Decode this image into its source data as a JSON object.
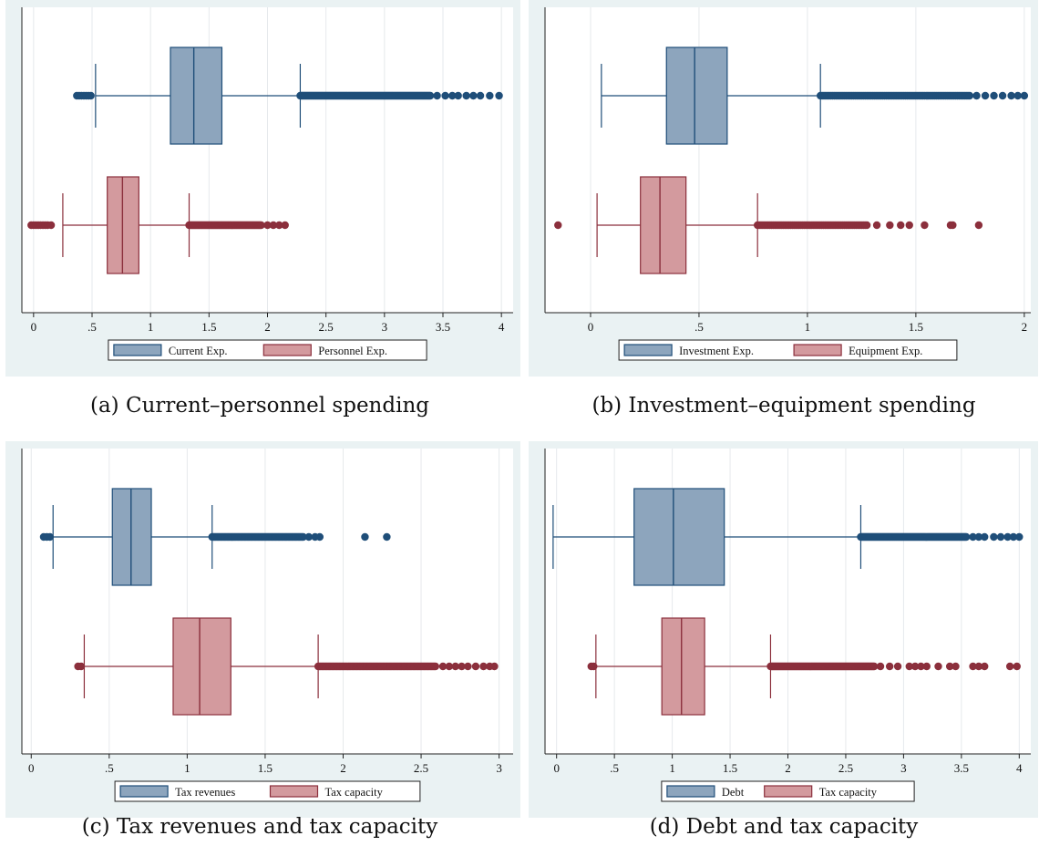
{
  "chart_data": [
    {
      "type": "boxplot",
      "caption": "(a) Current–personnel spending",
      "xticks": [
        0,
        0.5,
        1,
        1.5,
        2,
        2.5,
        3,
        3.5,
        4
      ],
      "xtick_labels": [
        "0",
        ".5",
        "1",
        "1.5",
        "2",
        "2.5",
        "3",
        "3.5",
        "4"
      ],
      "xlim": [
        -0.1,
        4.1
      ],
      "grid": true,
      "legend_position": "bottom",
      "series": [
        {
          "name": "Current Exp.",
          "fill": "#8da5bd",
          "stroke": "#1f4e79",
          "dot": "#1f4e79",
          "whisker_low": 0.53,
          "q1": 1.17,
          "median": 1.37,
          "q3": 1.61,
          "whisker_high": 2.28,
          "outliers_low": [
            0.37,
            0.39,
            0.41,
            0.43,
            0.45,
            0.47,
            0.49
          ],
          "outliers_high_range": [
            2.28,
            3.4
          ],
          "outliers_high_sparse": [
            3.45,
            3.52,
            3.58,
            3.63,
            3.7,
            3.76,
            3.82,
            3.9,
            3.98
          ]
        },
        {
          "name": "Personnel Exp.",
          "fill": "#d39a9e",
          "stroke": "#8b2f3c",
          "dot": "#8b2f3c",
          "whisker_low": 0.25,
          "q1": 0.63,
          "median": 0.76,
          "q3": 0.9,
          "whisker_high": 1.33,
          "outliers_low": [
            -0.02,
            0.0,
            0.02,
            0.04,
            0.06,
            0.08,
            0.1,
            0.12,
            0.15
          ],
          "outliers_high_range": [
            1.33,
            1.95
          ],
          "outliers_high_sparse": [
            2.0,
            2.05,
            2.1,
            2.15
          ]
        }
      ]
    },
    {
      "type": "boxplot",
      "caption": "(b) Investment–equipment spending",
      "xticks": [
        0,
        0.5,
        1,
        1.5,
        2
      ],
      "xtick_labels": [
        "0",
        ".5",
        "1",
        "1.5",
        "2"
      ],
      "xlim": [
        -0.21,
        2.03
      ],
      "grid": true,
      "legend_position": "bottom",
      "series": [
        {
          "name": "Investment Exp.",
          "fill": "#8da5bd",
          "stroke": "#1f4e79",
          "dot": "#1f4e79",
          "whisker_low": 0.05,
          "q1": 0.35,
          "median": 0.48,
          "q3": 0.63,
          "whisker_high": 1.06,
          "outliers_low": [],
          "outliers_high_range": [
            1.06,
            1.75
          ],
          "outliers_high_sparse": [
            1.78,
            1.82,
            1.86,
            1.9,
            1.94,
            1.97,
            2.0
          ]
        },
        {
          "name": "Equipment Exp.",
          "fill": "#d39a9e",
          "stroke": "#8b2f3c",
          "dot": "#8b2f3c",
          "whisker_low": 0.03,
          "q1": 0.23,
          "median": 0.32,
          "q3": 0.44,
          "whisker_high": 0.77,
          "outliers_low": [
            -0.15
          ],
          "outliers_high_range": [
            0.77,
            1.28
          ],
          "outliers_high_sparse": [
            1.32,
            1.38,
            1.43,
            1.47,
            1.54,
            1.66,
            1.67,
            1.79
          ]
        }
      ]
    },
    {
      "type": "boxplot",
      "caption": "(c) Tax revenues and tax capacity",
      "xticks": [
        0,
        0.5,
        1,
        1.5,
        2,
        2.5,
        3
      ],
      "xtick_labels": [
        "0",
        ".5",
        "1",
        "1.5",
        "2",
        "2.5",
        "3"
      ],
      "xlim": [
        -0.06,
        3.09
      ],
      "grid": true,
      "legend_position": "bottom",
      "series": [
        {
          "name": "Tax revenues",
          "fill": "#8da5bd",
          "stroke": "#1f4e79",
          "dot": "#1f4e79",
          "whisker_low": 0.14,
          "q1": 0.52,
          "median": 0.64,
          "q3": 0.77,
          "whisker_high": 1.16,
          "outliers_low": [
            0.08,
            0.1,
            0.12
          ],
          "outliers_high_range": [
            1.16,
            1.75
          ],
          "outliers_high_sparse": [
            1.78,
            1.82,
            1.85,
            2.14,
            2.28
          ]
        },
        {
          "name": "Tax capacity",
          "fill": "#d39a9e",
          "stroke": "#8b2f3c",
          "dot": "#8b2f3c",
          "whisker_low": 0.34,
          "q1": 0.91,
          "median": 1.08,
          "q3": 1.28,
          "whisker_high": 1.84,
          "outliers_low": [
            0.3,
            0.32
          ],
          "outliers_high_range": [
            1.84,
            2.6
          ],
          "outliers_high_sparse": [
            2.64,
            2.68,
            2.72,
            2.76,
            2.8,
            2.85,
            2.9,
            2.94,
            2.97
          ]
        }
      ]
    },
    {
      "type": "boxplot",
      "caption": "(d) Debt and tax capacity",
      "xticks": [
        0,
        0.5,
        1,
        1.5,
        2,
        2.5,
        3,
        3.5,
        4
      ],
      "xtick_labels": [
        "0",
        ".5",
        "1",
        "1.5",
        "2",
        "2.5",
        "3",
        "3.5",
        "4"
      ],
      "xlim": [
        -0.1,
        4.1
      ],
      "grid": true,
      "legend_position": "bottom",
      "series": [
        {
          "name": "Debt",
          "fill": "#8da5bd",
          "stroke": "#1f4e79",
          "dot": "#1f4e79",
          "whisker_low": -0.03,
          "q1": 0.67,
          "median": 1.01,
          "q3": 1.45,
          "whisker_high": 2.63,
          "outliers_low": [],
          "outliers_high_range": [
            2.63,
            3.55
          ],
          "outliers_high_sparse": [
            3.6,
            3.65,
            3.7,
            3.78,
            3.84,
            3.9,
            3.95,
            4.0
          ]
        },
        {
          "name": "Tax capacity",
          "fill": "#d39a9e",
          "stroke": "#8b2f3c",
          "dot": "#8b2f3c",
          "whisker_low": 0.34,
          "q1": 0.91,
          "median": 1.08,
          "q3": 1.28,
          "whisker_high": 1.85,
          "outliers_low": [
            0.3,
            0.32
          ],
          "outliers_high_range": [
            1.85,
            2.75
          ],
          "outliers_high_sparse": [
            2.8,
            2.88,
            2.95,
            3.05,
            3.1,
            3.15,
            3.2,
            3.3,
            3.4,
            3.45,
            3.6,
            3.65,
            3.7,
            3.92,
            3.98
          ]
        }
      ]
    }
  ]
}
